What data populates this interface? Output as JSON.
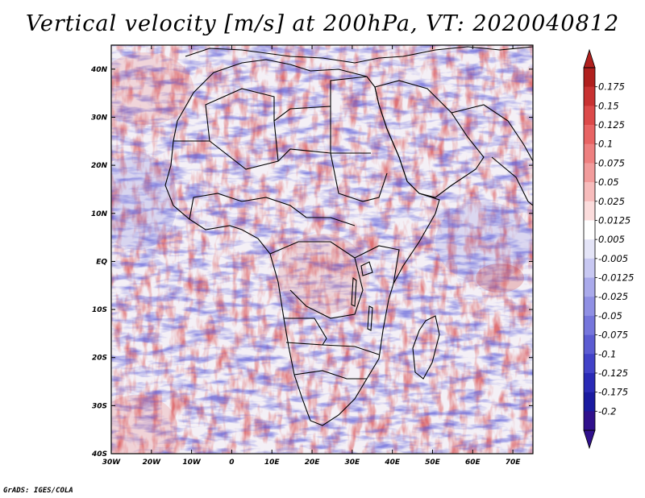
{
  "title": "Vertical velocity [m/s] at 200hPa, VT: 2020040812",
  "credit": "GrADS: IGES/COLA",
  "map": {
    "lat_labels": [
      "40N",
      "30N",
      "20N",
      "10N",
      "EQ",
      "10S",
      "20S",
      "30S",
      "40S"
    ],
    "lon_labels": [
      "30W",
      "20W",
      "10W",
      "0",
      "10E",
      "20E",
      "30E",
      "40E",
      "50E",
      "60E",
      "70E"
    ],
    "lat_range": [
      -40,
      45
    ],
    "lon_range": [
      -30,
      75
    ]
  },
  "colorbar": {
    "labels": [
      "0.175",
      "0.15",
      "0.125",
      "0.1",
      "0.075",
      "0.05",
      "0.025",
      "0.0125",
      "0.005",
      "-0.005",
      "-0.0125",
      "-0.025",
      "-0.05",
      "-0.075",
      "-0.1",
      "-0.125",
      "-0.175",
      "-0.2"
    ],
    "colors": [
      "#b0201e",
      "#c83232",
      "#dc4a4a",
      "#e86464",
      "#ee8080",
      "#f29c9c",
      "#f7bcbc",
      "#fbdcdc",
      "#ffffff",
      "#e4e4f7",
      "#c8c8f2",
      "#aaaaeb",
      "#9090e4",
      "#7676dc",
      "#5c5cd2",
      "#4242c8",
      "#2a2ab6",
      "#1a1aa0",
      "#30108c"
    ]
  },
  "colors": {
    "positive": "#d8484a",
    "negative": "#5a5ad8"
  }
}
